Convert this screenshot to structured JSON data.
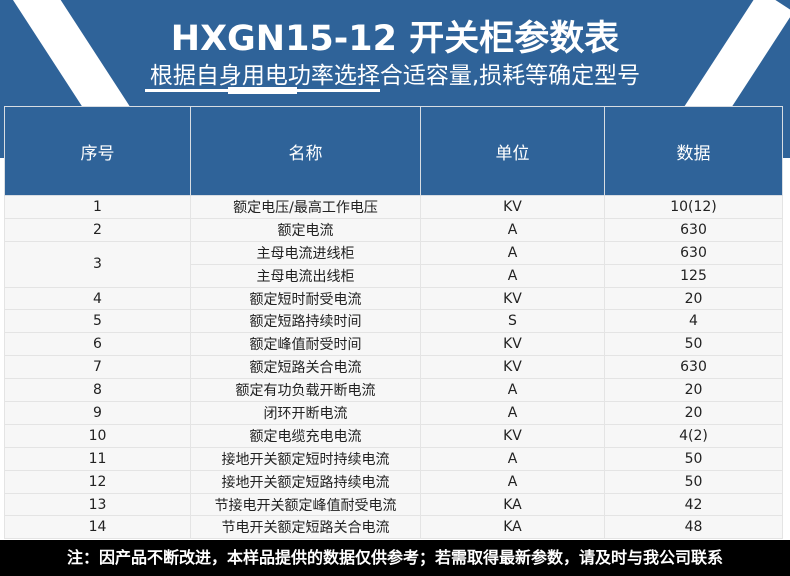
{
  "header": {
    "title": "HXGN15-12 开关柜参数表",
    "subtitle": "根据自身用电功率选择合适容量,损耗等确定型号"
  },
  "table": {
    "columns": [
      "序号",
      "名称",
      "单位",
      "数据"
    ],
    "rows": [
      {
        "no": "1",
        "name": "额定电压/最高工作电压",
        "unit": "KV",
        "value": "10(12)"
      },
      {
        "no": "2",
        "name": "额定电流",
        "unit": "A",
        "value": "630"
      },
      {
        "no": "3",
        "name": "主母电流进线柜",
        "unit": "A",
        "value": "630"
      },
      {
        "no": "",
        "name": "主母电流出线柜",
        "unit": "A",
        "value": "125"
      },
      {
        "no": "4",
        "name": "额定短时耐受电流",
        "unit": "KV",
        "value": "20"
      },
      {
        "no": "5",
        "name": "额定短路持续时间",
        "unit": "S",
        "value": "4"
      },
      {
        "no": "6",
        "name": "额定峰值耐受时间",
        "unit": "KV",
        "value": "50"
      },
      {
        "no": "7",
        "name": "额定短路关合电流",
        "unit": "KV",
        "value": "630"
      },
      {
        "no": "8",
        "name": "额定有功负载开断电流",
        "unit": "A",
        "value": "20"
      },
      {
        "no": "9",
        "name": "闭环开断电流",
        "unit": "A",
        "value": "20"
      },
      {
        "no": "10",
        "name": "额定电缆充电电流",
        "unit": "KV",
        "value": "4(2)"
      },
      {
        "no": "11",
        "name": "接地开关额定短时持续电流",
        "unit": "A",
        "value": "50"
      },
      {
        "no": "12",
        "name": "接地开关额定短路持续电流",
        "unit": "A",
        "value": "50"
      },
      {
        "no": "13",
        "name": "节接电开关额定峰值耐受电流",
        "unit": "KA",
        "value": "42"
      },
      {
        "no": "14",
        "name": "节电开关额定短路关合电流",
        "unit": "KA",
        "value": "48"
      }
    ]
  },
  "footer": {
    "note": "注：因产品不断改进，本样品提供的数据仅供参考；若需取得最新参数，请及时与我公司联系"
  },
  "colors": {
    "brand": "#2f6399",
    "footer": "#000000"
  }
}
